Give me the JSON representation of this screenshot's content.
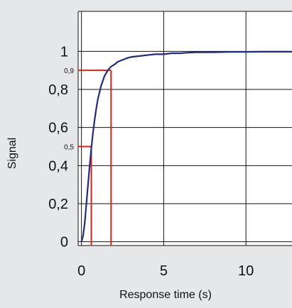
{
  "chart_data": {
    "type": "line",
    "xlabel": "Response time (s)",
    "ylabel": "Signal",
    "x_ticks": [
      0,
      5,
      10
    ],
    "x_tick_labels": [
      "0",
      "5",
      "10"
    ],
    "y_ticks": [
      0,
      0.2,
      0.4,
      0.6,
      0.8,
      1
    ],
    "y_tick_labels": [
      "0",
      "0,2",
      "0,4",
      "0,6",
      "0,8",
      "1"
    ],
    "xlim": [
      -0.2,
      12.8
    ],
    "ylim": [
      -0.02,
      1.21
    ],
    "grid": true,
    "series": [
      {
        "color": "#1f2b8a",
        "x": [
          0,
          0.1,
          0.2,
          0.3,
          0.4,
          0.5,
          0.6,
          0.7,
          0.8,
          0.9,
          1.0,
          1.2,
          1.4,
          1.6,
          1.8,
          2.0,
          2.2,
          2.5,
          2.8,
          3.0,
          3.5,
          4.0,
          4.5,
          5.0,
          5.5,
          6.0,
          6.5,
          7.0,
          8.0,
          9.0,
          10.0,
          11.0,
          12.0,
          12.8
        ],
        "y": [
          0.0,
          0.03,
          0.1,
          0.2,
          0.3,
          0.4,
          0.49,
          0.57,
          0.64,
          0.7,
          0.75,
          0.82,
          0.87,
          0.9,
          0.92,
          0.93,
          0.945,
          0.955,
          0.965,
          0.97,
          0.975,
          0.98,
          0.985,
          0.985,
          0.99,
          0.99,
          0.993,
          0.995,
          0.995,
          0.997,
          0.997,
          0.998,
          0.998,
          0.998
        ]
      }
    ],
    "annotations": [
      {
        "label": "0,5",
        "x": 0.6,
        "y": 0.5,
        "color": "#e0201b"
      },
      {
        "label": "0,9",
        "x": 1.8,
        "y": 0.9,
        "color": "#e0201b"
      }
    ]
  }
}
